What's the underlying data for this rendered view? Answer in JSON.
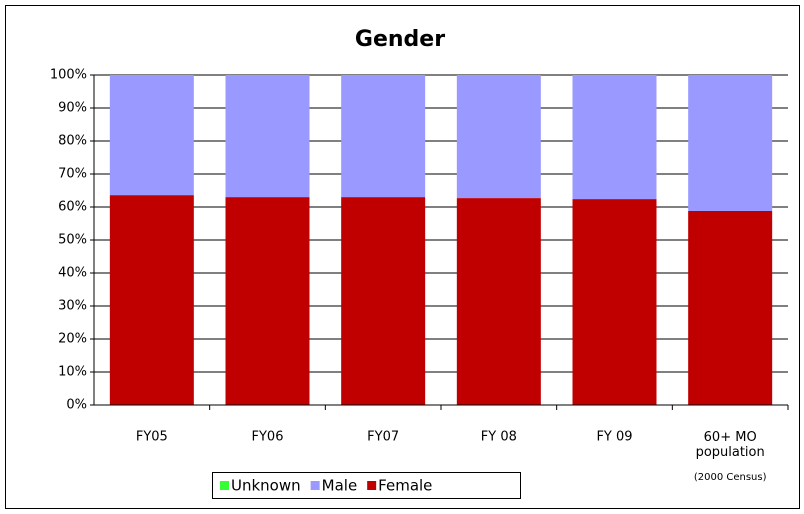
{
  "chart_data": {
    "type": "stacked_bar",
    "title": "Gender",
    "categories": [
      "FY05",
      "FY06",
      "FY07",
      "FY 08",
      "FY 09",
      "60+ MO population"
    ],
    "category_subtexts": [
      null,
      null,
      null,
      null,
      null,
      "(2000 Census)"
    ],
    "series": [
      {
        "name": "Unknown",
        "color": "#33ff33",
        "values": [
          0,
          0,
          0,
          0,
          0,
          0
        ]
      },
      {
        "name": "Male",
        "color": "#9999ff",
        "values": [
          36.4,
          37,
          37,
          37.3,
          37.6,
          41.2
        ]
      },
      {
        "name": "Female",
        "color": "#c00000",
        "values": [
          63.6,
          63,
          63,
          62.7,
          62.4,
          58.8
        ]
      }
    ],
    "ylim": [
      0,
      100
    ],
    "yticks": [
      {
        "value": 0,
        "label": "0%"
      },
      {
        "value": 10,
        "label": "10%"
      },
      {
        "value": 20,
        "label": "20%"
      },
      {
        "value": 30,
        "label": "30%"
      },
      {
        "value": 40,
        "label": "40%"
      },
      {
        "value": 50,
        "label": "50%"
      },
      {
        "value": 60,
        "label": "60%"
      },
      {
        "value": 70,
        "label": "70%"
      },
      {
        "value": 80,
        "label": "80%"
      },
      {
        "value": 90,
        "label": "90%"
      },
      {
        "value": 100,
        "label": "100%"
      }
    ],
    "grid": true,
    "legend": "bottom"
  }
}
